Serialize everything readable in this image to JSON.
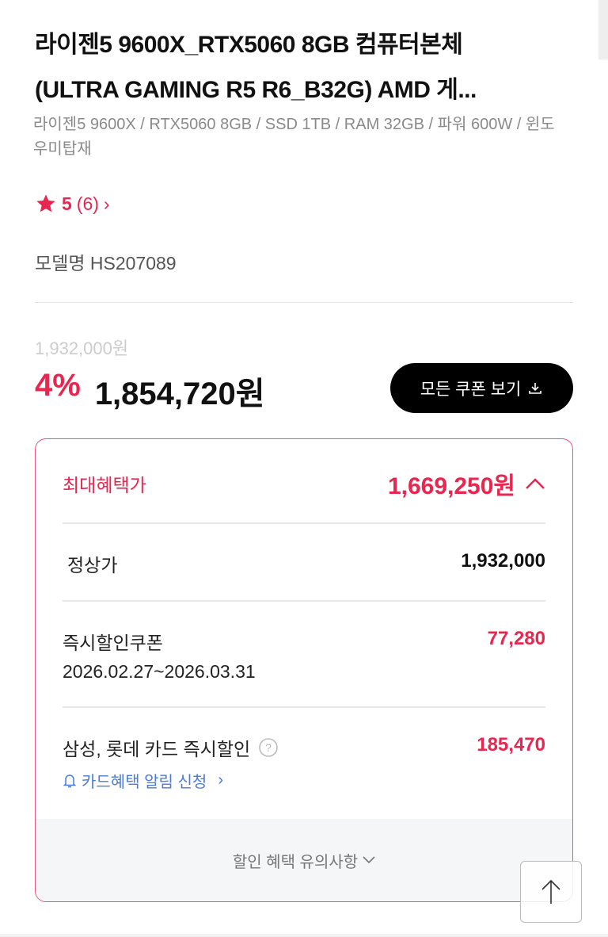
{
  "product": {
    "title_lines": [
      "라이젠5 9600X_RTX5060 8GB 컴퓨터본체",
      "(ULTRA GAMING R5 R6_B32G) AMD 게..."
    ],
    "subtitle": "라이젠5 9600X / RTX5060 8GB / SSD 1TB / RAM 32GB / 파워 600W / 윈도우미탑재",
    "rating": "5",
    "review_count": "(6)",
    "model": "모델명 HS207089"
  },
  "price": {
    "original": "1,932,000원",
    "discount_pct": "4%",
    "sale": "1,854,720원",
    "coupon_button": "모든 쿠폰 보기"
  },
  "benefit": {
    "header_label": "최대혜택가",
    "header_value": "1,669,250원",
    "regular_label": "정상가",
    "regular_value": "1,932,000",
    "coupon_label": "즉시할인쿠폰",
    "coupon_period": "2026.02.27~2026.03.31",
    "coupon_value": "77,280",
    "card_label": "삼성, 롯데 카드 즉시할인",
    "card_value": "185,470",
    "card_alert_link": "카드혜택 알림 신청",
    "notice": "할인 혜택 유의사항"
  },
  "colors": {
    "accent": "#e8264f",
    "link": "#4a7bdc"
  }
}
